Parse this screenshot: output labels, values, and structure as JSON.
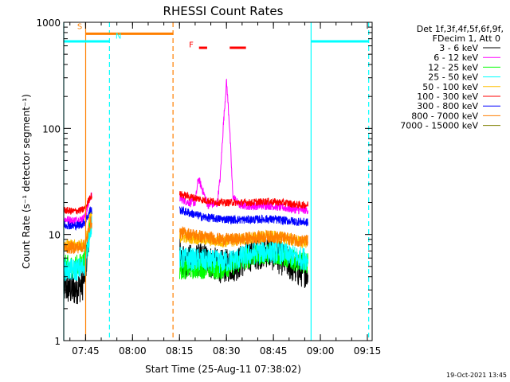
{
  "chart_data": {
    "type": "line",
    "title": "RHESSI Count Rates",
    "xlabel": "Start Time (25-Aug-11 07:38:02)",
    "ylabel": "Count Rate (s⁻¹ detector segment⁻¹)",
    "yscale": "log",
    "ylim": [
      1,
      1000
    ],
    "xlim_minutes": [
      0,
      98.5
    ],
    "x_ticks": [
      {
        "label": "07:45",
        "t": 6.97
      },
      {
        "label": "08:00",
        "t": 21.97
      },
      {
        "label": "08:15",
        "t": 36.97
      },
      {
        "label": "08:30",
        "t": 51.97
      },
      {
        "label": "08:45",
        "t": 66.97
      },
      {
        "label": "09:00",
        "t": 81.97
      },
      {
        "label": "09:15",
        "t": 96.97
      }
    ],
    "y_ticks": [
      {
        "label": "1",
        "v": 1
      },
      {
        "label": "10",
        "v": 10
      },
      {
        "label": "100",
        "v": 100
      },
      {
        "label": "1000",
        "v": 1000
      }
    ],
    "legend_header": [
      "Det 1f,3f,4f,5f,6f,9f,",
      "FDecim 1, Att 0"
    ],
    "data_gaps_minutes": [
      [
        8.97,
        36.97
      ],
      [
        79.0,
        98.5
      ]
    ],
    "series": [
      {
        "name": "3 - 6 keV",
        "color": "#000000",
        "t": [
          0,
          3,
          6,
          7,
          8.5,
          37,
          38,
          45,
          50,
          55,
          60,
          65,
          70,
          75,
          78
        ],
        "v": [
          3.2,
          3.0,
          3.4,
          5.0,
          14,
          7.2,
          5.5,
          5.8,
          5.0,
          5.2,
          6.5,
          7.0,
          5.8,
          4.6,
          4.5
        ]
      },
      {
        "name": "6 - 12 keV",
        "color": "#ff00ff",
        "t": [
          0,
          3,
          6,
          7,
          8.5,
          37,
          40,
          42,
          43,
          46,
          49,
          50,
          51,
          52,
          53,
          54,
          56,
          60,
          65,
          70,
          75,
          78
        ],
        "v": [
          14,
          13.5,
          14,
          15,
          23,
          22,
          20,
          20,
          34,
          19,
          19.5,
          35,
          110,
          280,
          100,
          23,
          19,
          18.5,
          18.8,
          18,
          17,
          17
        ]
      },
      {
        "name": "12 - 25 keV",
        "color": "#00ff00",
        "t": [
          0,
          3,
          6,
          7,
          8.5,
          37,
          45,
          50,
          55,
          60,
          65,
          70,
          75,
          78
        ],
        "v": [
          5.2,
          5.0,
          5.4,
          6.0,
          14,
          4.7,
          4.8,
          4.7,
          5.3,
          6.2,
          6.6,
          6.2,
          5.5,
          5.4
        ]
      },
      {
        "name": "25 - 50 keV",
        "color": "#00ffff",
        "t": [
          0,
          3,
          6,
          7,
          8.5,
          37,
          45,
          50,
          55,
          60,
          65,
          70,
          75,
          78
        ],
        "v": [
          4.7,
          4.6,
          4.8,
          5.4,
          12,
          6.0,
          5.7,
          5.5,
          5.8,
          6.6,
          7.0,
          6.7,
          6.0,
          5.9
        ]
      },
      {
        "name": "50 - 100 keV",
        "color": "#ffbf00",
        "t": [
          0,
          3,
          6,
          7,
          8.5,
          37,
          45,
          50,
          55,
          60,
          65,
          70,
          75,
          78
        ],
        "v": [
          8.0,
          7.8,
          8.0,
          8.4,
          15,
          9.6,
          9.0,
          8.6,
          8.8,
          9.3,
          9.6,
          9.3,
          8.6,
          8.5
        ]
      },
      {
        "name": "100 - 300 keV",
        "color": "#ff0000",
        "t": [
          0,
          3,
          6,
          7,
          8.5,
          37,
          45,
          50,
          55,
          60,
          65,
          70,
          75,
          78
        ],
        "v": [
          17,
          16.5,
          17,
          18,
          23,
          24,
          21,
          20,
          20,
          20,
          20.5,
          20,
          19,
          19
        ]
      },
      {
        "name": "300 - 800 keV",
        "color": "#0000ff",
        "t": [
          0,
          3,
          6,
          7,
          8.5,
          37,
          45,
          50,
          55,
          60,
          65,
          70,
          75,
          78
        ],
        "v": [
          12.5,
          12.0,
          12.5,
          13.5,
          17,
          17,
          14.5,
          14.0,
          13.8,
          13.8,
          14.0,
          13.6,
          13.2,
          13.0
        ]
      },
      {
        "name": "800 - 7000 keV",
        "color": "#ff7f00",
        "t": [
          0,
          3,
          6,
          7,
          8.5,
          37,
          45,
          50,
          55,
          60,
          65,
          70,
          75,
          78
        ],
        "v": [
          7.6,
          7.5,
          7.7,
          8.0,
          13,
          10.5,
          9.5,
          9.0,
          9.0,
          9.3,
          9.6,
          9.3,
          8.8,
          8.7
        ]
      },
      {
        "name": "7000 - 15000 keV",
        "color": "#7f7f00",
        "t": [],
        "v": []
      }
    ],
    "annotations": {
      "vlines": [
        {
          "t": 0,
          "color": "#00ffff",
          "style": "solid"
        },
        {
          "t": 7.0,
          "color": "#ff7f00",
          "style": "solid"
        },
        {
          "t": 14.6,
          "color": "#00ffff",
          "style": "dashed"
        },
        {
          "t": 34.9,
          "color": "#ff7f00",
          "style": "dashed"
        },
        {
          "t": 79.0,
          "color": "#00ffff",
          "style": "solid"
        },
        {
          "t": 97.4,
          "color": "#00ffff",
          "style": "dashed"
        }
      ],
      "bars": [
        {
          "t0": 7.0,
          "t1": 34.9,
          "v": 780,
          "color": "#ff7f00",
          "label": "S",
          "label_t": 4.3,
          "label_v": 860
        },
        {
          "t0": 0,
          "t1": 14.6,
          "v": 660,
          "color": "#00ffff",
          "label": "N",
          "label_t": 16.5,
          "label_v": 700
        },
        {
          "t0": 79.0,
          "t1": 97.4,
          "v": 660,
          "color": "#00ffff",
          "label": "",
          "label_t": 0,
          "label_v": 0
        }
      ],
      "flare_marker": {
        "label": "F",
        "color": "#ff0000",
        "label_t": 40.0,
        "label_v": 580,
        "segments": [
          [
            43.2,
            45.8
          ],
          [
            53.0,
            58.2
          ]
        ],
        "v": 575
      }
    }
  },
  "footer": {
    "date_stamp": "19-Oct-2021 13:45"
  }
}
